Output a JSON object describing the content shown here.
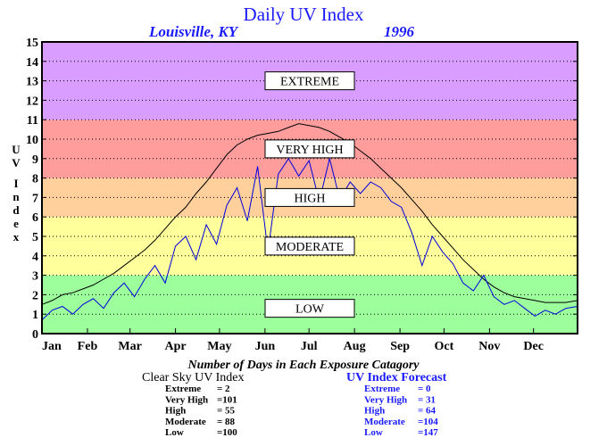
{
  "chart_data": {
    "type": "line",
    "title": "Daily UV Index",
    "location": "Louisville, KY",
    "year": "1996",
    "ylabel": "UV Index",
    "xlabel": "Number of Days in Each Exposure Catagory",
    "ylim": [
      0,
      15
    ],
    "xlim": [
      1,
      366
    ],
    "grid": true,
    "y_ticks": [
      "0",
      "1",
      "2",
      "3",
      "4",
      "5",
      "6",
      "7",
      "8",
      "9",
      "10",
      "11",
      "12",
      "13",
      "14",
      "15"
    ],
    "x_ticks": [
      {
        "label": "Jan",
        "day": 1
      },
      {
        "label": "Feb",
        "day": 32
      },
      {
        "label": "Mar",
        "day": 61
      },
      {
        "label": "Apr",
        "day": 92
      },
      {
        "label": "May",
        "day": 122
      },
      {
        "label": "Jun",
        "day": 153
      },
      {
        "label": "Jul",
        "day": 183
      },
      {
        "label": "Aug",
        "day": 214
      },
      {
        "label": "Sep",
        "day": 245
      },
      {
        "label": "Oct",
        "day": 275
      },
      {
        "label": "Nov",
        "day": 306
      },
      {
        "label": "Dec",
        "day": 336
      }
    ],
    "bands": [
      {
        "label": "LOW",
        "from": 0,
        "to": 3,
        "color": "#9cff9c"
      },
      {
        "label": "MODERATE",
        "from": 3,
        "to": 6,
        "color": "#ffff9c"
      },
      {
        "label": "HIGH",
        "from": 6,
        "to": 8,
        "color": "#ffcf9c"
      },
      {
        "label": "VERY HIGH",
        "from": 8,
        "to": 11,
        "color": "#ff9c9c"
      },
      {
        "label": "EXTREME",
        "from": 11,
        "to": 15,
        "color": "#d99cff"
      }
    ],
    "series": [
      {
        "name": "Clear Sky UV Index",
        "color": "#000000",
        "x": [
          1,
          8,
          15,
          22,
          29,
          36,
          43,
          50,
          57,
          64,
          71,
          78,
          85,
          92,
          99,
          106,
          113,
          120,
          127,
          134,
          141,
          148,
          155,
          162,
          169,
          176,
          183,
          190,
          197,
          204,
          211,
          218,
          225,
          232,
          239,
          246,
          253,
          260,
          267,
          274,
          281,
          288,
          295,
          302,
          309,
          316,
          323,
          330,
          337,
          344,
          351,
          358,
          366
        ],
        "values": [
          1.5,
          1.7,
          2.0,
          2.1,
          2.3,
          2.5,
          2.8,
          3.1,
          3.5,
          3.9,
          4.3,
          4.8,
          5.4,
          6.0,
          6.5,
          7.2,
          7.8,
          8.5,
          9.2,
          9.7,
          10.0,
          10.2,
          10.3,
          10.4,
          10.6,
          10.8,
          10.7,
          10.6,
          10.4,
          10.1,
          9.8,
          9.4,
          9.0,
          8.5,
          8.0,
          7.5,
          6.9,
          6.3,
          5.6,
          5.0,
          4.4,
          3.8,
          3.3,
          2.8,
          2.4,
          2.1,
          1.9,
          1.8,
          1.7,
          1.6,
          1.6,
          1.6,
          1.7
        ]
      },
      {
        "name": "UV Index Forecast",
        "color": "#0000dd",
        "x": [
          1,
          8,
          15,
          22,
          29,
          36,
          43,
          50,
          57,
          64,
          71,
          78,
          85,
          92,
          99,
          106,
          113,
          120,
          127,
          134,
          141,
          148,
          155,
          162,
          169,
          176,
          183,
          190,
          197,
          204,
          211,
          218,
          225,
          232,
          239,
          246,
          253,
          260,
          267,
          274,
          281,
          288,
          295,
          302,
          309,
          316,
          323,
          330,
          337,
          344,
          351,
          358,
          366
        ],
        "values": [
          0.7,
          1.2,
          1.4,
          1.0,
          1.5,
          1.8,
          1.3,
          2.1,
          2.6,
          1.9,
          2.8,
          3.5,
          2.6,
          4.5,
          5.0,
          3.8,
          5.6,
          4.6,
          6.6,
          7.5,
          5.8,
          8.6,
          4.2,
          8.2,
          9.0,
          8.1,
          8.9,
          6.8,
          9.0,
          6.9,
          7.8,
          7.2,
          7.8,
          7.5,
          6.8,
          6.5,
          5.2,
          3.5,
          5.0,
          4.2,
          3.6,
          2.6,
          2.2,
          3.0,
          1.9,
          1.5,
          1.7,
          1.3,
          0.9,
          1.2,
          1.0,
          1.3,
          1.4
        ]
      }
    ]
  },
  "tables": {
    "caption": "Number of Days in Each Exposure Catagory",
    "clear_sky": {
      "title": "Clear Sky UV Index",
      "rows": [
        {
          "label": "Extreme",
          "value": "=     2"
        },
        {
          "label": "Very High",
          "value": "=101"
        },
        {
          "label": "High",
          "value": "=   55"
        },
        {
          "label": "Moderate",
          "value": "=   88"
        },
        {
          "label": "Low",
          "value": "=100"
        }
      ]
    },
    "forecast": {
      "title": "UV Index Forecast",
      "rows": [
        {
          "label": "Extreme",
          "value": "=     0"
        },
        {
          "label": "Very High",
          "value": "=   31"
        },
        {
          "label": "High",
          "value": "=   64"
        },
        {
          "label": "Moderate",
          "value": "=104"
        },
        {
          "label": "Low",
          "value": "=147"
        }
      ]
    }
  }
}
